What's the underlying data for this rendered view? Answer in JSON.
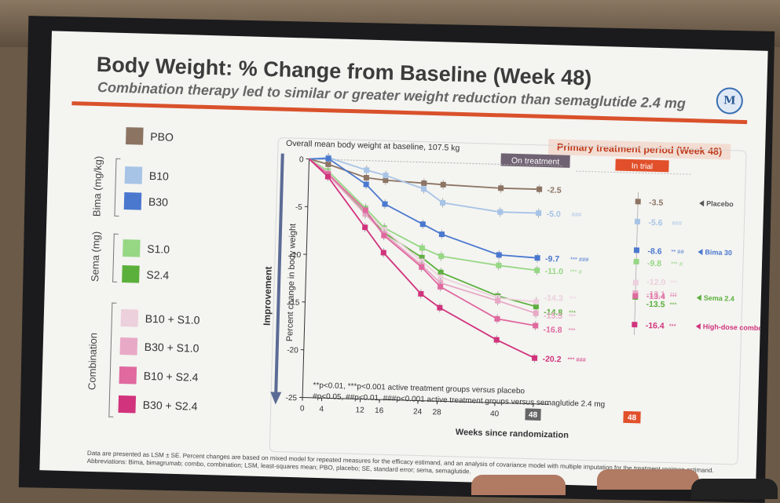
{
  "slide": {
    "title": "Body Weight: % Change from Baseline (Week 48)",
    "subtitle": "Combination therapy led to similar or greater weight reduction than semaglutide 2.4 mg",
    "logo_text": "M",
    "primary_banner": "Primary treatment period (Week 48)",
    "footnote_line1": "Data are presented as LSM ± SE. Percent changes are based on mixed model for repeated measures for the efficacy estimand, and an analysis of covariance model with multiple imputation for the treatment regimen estimand.",
    "footnote_line2": "Abbreviations: Bima, bimagrumab; combo, combination; LSM, least-squares mean; PBO, placebo; SE, standard error; sema, semaglutide."
  },
  "legend": {
    "groups": [
      "Bima (mg/kg)",
      "Sema (mg)",
      "Combination"
    ],
    "items": [
      {
        "label": "PBO",
        "color": "#8c7463"
      },
      {
        "label": "B10",
        "color": "#a7c4e6"
      },
      {
        "label": "B30",
        "color": "#4a78cf"
      },
      {
        "label": "S1.0",
        "color": "#96d784"
      },
      {
        "label": "S2.4",
        "color": "#5bb03c"
      },
      {
        "label": "B10 + S1.0",
        "color": "#ecd0dc"
      },
      {
        "label": "B30 + S1.0",
        "color": "#e8a9c6"
      },
      {
        "label": "B10 + S2.4",
        "color": "#e0699f"
      },
      {
        "label": "B30 + S2.4",
        "color": "#d1337c"
      }
    ]
  },
  "chart_data": {
    "type": "line",
    "title": "Overall mean body weight at baseline, 107.5 kg",
    "xlabel": "Weeks since randomization",
    "ylabel": "Percent change in body weight",
    "improvement_label": "Improvement",
    "on_treatment_label": "On treatment",
    "in_trial_label": "In trial",
    "x": [
      0,
      4,
      12,
      16,
      24,
      28,
      40,
      48
    ],
    "x_tick_labels": [
      "0",
      "4",
      "12",
      "16",
      "24",
      "28",
      "40",
      "48"
    ],
    "in_trial_x_label": "48",
    "ylim": [
      -25,
      0
    ],
    "y_ticks": [
      0,
      -5,
      -10,
      -15,
      -20,
      -25
    ],
    "y_tick_labels": [
      "0",
      "-5",
      "-10",
      "-15",
      "-20",
      "-25"
    ],
    "series": [
      {
        "name": "PBO",
        "color": "#8c7463",
        "values": [
          0,
          -0.5,
          -1.8,
          -2.0,
          -2.2,
          -2.3,
          -2.5,
          -2.5
        ],
        "end_label": "-2.5",
        "sig": ""
      },
      {
        "name": "B10",
        "color": "#a7c4e6",
        "values": [
          0,
          0.2,
          -1.0,
          -1.5,
          -2.8,
          -4.2,
          -5.0,
          -5.0
        ],
        "end_label": "-5.0",
        "sig": "###"
      },
      {
        "name": "B30",
        "color": "#4a78cf",
        "values": [
          0,
          0.1,
          -2.5,
          -4.5,
          -6.5,
          -7.5,
          -9.5,
          -9.7
        ],
        "end_label": "-9.7",
        "sig": "*** ###"
      },
      {
        "name": "S1.0",
        "color": "#96d784",
        "values": [
          0,
          -1.2,
          -5.0,
          -7.0,
          -9.0,
          -9.8,
          -10.6,
          -11.0
        ],
        "end_label": "-11.0",
        "sig": "*** #"
      },
      {
        "name": "S2.4",
        "color": "#5bb03c",
        "values": [
          0,
          -1.5,
          -5.5,
          -7.5,
          -10.0,
          -11.5,
          -13.8,
          -14.8
        ],
        "end_label": "-14.8",
        "sig": "***"
      },
      {
        "name": "B10 + S1.0",
        "color": "#ecd0dc",
        "values": [
          0,
          -1.4,
          -5.3,
          -7.2,
          -10.4,
          -12.0,
          -14.0,
          -14.3
        ],
        "end_label": "-14.3",
        "sig": "***"
      },
      {
        "name": "B30 + S1.0",
        "color": "#e8a9c6",
        "values": [
          0,
          -1.6,
          -5.6,
          -7.6,
          -10.8,
          -12.6,
          -14.3,
          -15.5
        ],
        "end_label": "-15.5",
        "sig": "***"
      },
      {
        "name": "B10 + S2.4",
        "color": "#e0699f",
        "values": [
          0,
          -1.5,
          -5.2,
          -7.8,
          -11.0,
          -13.0,
          -16.2,
          -16.8
        ],
        "end_label": "-16.8",
        "sig": "***"
      },
      {
        "name": "B30 + S2.4",
        "color": "#d1337c",
        "values": [
          0,
          -1.8,
          -7.0,
          -9.6,
          -13.8,
          -15.2,
          -18.4,
          -20.2
        ],
        "end_label": "-20.2",
        "sig": "*** ###"
      }
    ],
    "in_trial": [
      {
        "name": "PBO",
        "color": "#8c7463",
        "value": -3.5,
        "label": "-3.5",
        "sig": ""
      },
      {
        "name": "B10",
        "color": "#a7c4e6",
        "value": -5.6,
        "label": "-5.6",
        "sig": "###"
      },
      {
        "name": "B30",
        "color": "#4a78cf",
        "value": -8.6,
        "label": "-8.6",
        "sig": "** ##"
      },
      {
        "name": "S1.0",
        "color": "#96d784",
        "value": -9.8,
        "label": "-9.8",
        "sig": "*** #"
      },
      {
        "name": "B10 + S1.0",
        "color": "#ecd0dc",
        "value": -12.0,
        "label": "-12.0",
        "sig": "***"
      },
      {
        "name": "B30 + S1.0",
        "color": "#e8a9c6",
        "value": -13.1,
        "label": "-13.1",
        "sig": "***"
      },
      {
        "name": "S2.4",
        "color": "#5bb03c",
        "value": -13.5,
        "label": "-13.5",
        "sig": "***"
      },
      {
        "name": "B10 + S2.4",
        "color": "#e0699f",
        "value": -13.4,
        "label": "-13.4",
        "sig": "***"
      },
      {
        "name": "B30 + S2.4",
        "color": "#d1337c",
        "value": -16.4,
        "label": "-16.4",
        "sig": "***"
      }
    ],
    "annotations": [
      {
        "text": "Placebo",
        "color": "#555555"
      },
      {
        "text": "Bima 30",
        "color": "#4a78cf"
      },
      {
        "text": "Sema 2.4",
        "color": "#5bb03c"
      },
      {
        "text": "High-dose combo",
        "color": "#d1337c"
      }
    ],
    "significance_note_1": "**p<0.01, ***p<0.001 active treatment groups versus placebo",
    "significance_note_2": "#p<0.05, ##p<0.01, ###p<0.001 active treatment groups versus semaglutide 2.4 mg"
  }
}
